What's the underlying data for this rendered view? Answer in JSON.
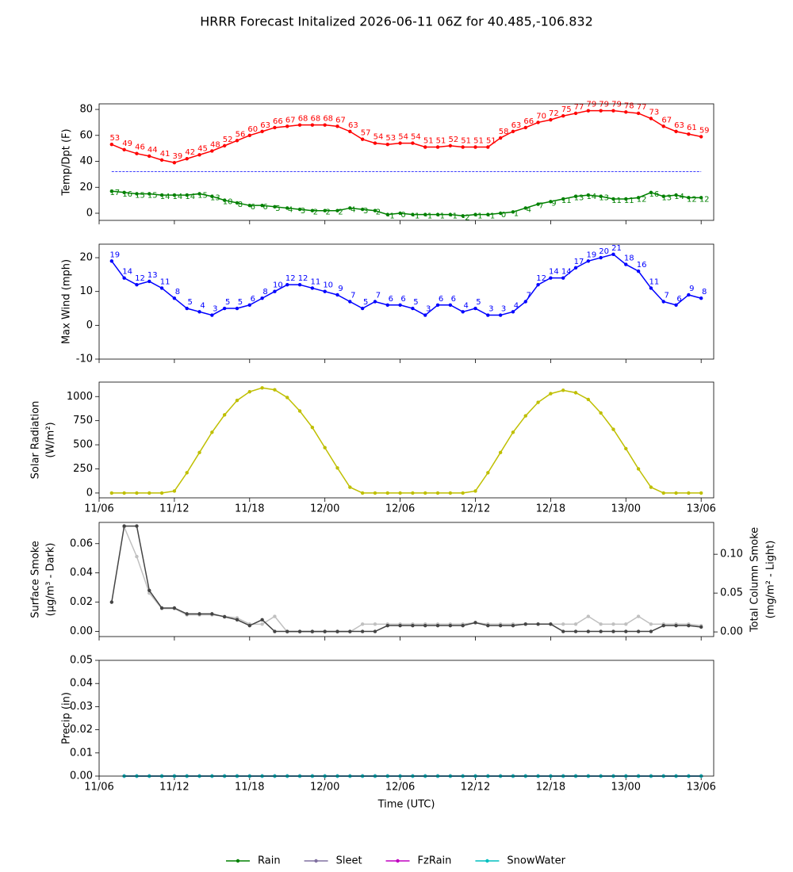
{
  "title": "HRRR Forecast Initalized 2026-06-11 06Z for 40.485,-106.832",
  "chart_data": [
    {
      "type": "line",
      "ylabel": [
        "Temp/Dpt (F)"
      ],
      "x": [
        1,
        2,
        3,
        4,
        5,
        6,
        7,
        8,
        9,
        10,
        11,
        12,
        13,
        14,
        15,
        16,
        17,
        18,
        19,
        20,
        21,
        22,
        23,
        24,
        25,
        26,
        27,
        28,
        29,
        30,
        31,
        32,
        33,
        34,
        35,
        36,
        37,
        38,
        39,
        40,
        41,
        42,
        43,
        44,
        45,
        46,
        47,
        48
      ],
      "xlim": [
        0,
        49
      ],
      "xticks": [
        0,
        6,
        12,
        18,
        24,
        30,
        36,
        42,
        48
      ],
      "ylim": [
        -5.5,
        84.3
      ],
      "yticks": [
        0,
        20,
        40,
        60,
        80
      ],
      "reference_line": {
        "value": 32,
        "color": "#0000ff"
      },
      "series": [
        {
          "color": "#ff0000",
          "show_values": true,
          "values": [
            53,
            49,
            46,
            44,
            41,
            39,
            42,
            45,
            48,
            52,
            56,
            60,
            63,
            66,
            67,
            68,
            68,
            68,
            67,
            63,
            57,
            54,
            53,
            54,
            54,
            51,
            51,
            52,
            51,
            51,
            51,
            58,
            63,
            66,
            70,
            72,
            75,
            77,
            79,
            79,
            79,
            78,
            77,
            73,
            67,
            63,
            61,
            59
          ]
        },
        {
          "color": "#008000",
          "show_values": true,
          "values": [
            17,
            16,
            15,
            15,
            14,
            14,
            14,
            15,
            13,
            10,
            8,
            6,
            6,
            5,
            4,
            3,
            2,
            2,
            2,
            4,
            3,
            2,
            -1,
            0,
            -1,
            -1,
            -1,
            -1,
            -2,
            -1,
            -1,
            0,
            1,
            4,
            7,
            9,
            11,
            13,
            14,
            13,
            11,
            11,
            12,
            16,
            13,
            14,
            12,
            12
          ]
        }
      ]
    },
    {
      "type": "line",
      "ylabel": [
        "Max Wind (mph)"
      ],
      "x": [
        1,
        2,
        3,
        4,
        5,
        6,
        7,
        8,
        9,
        10,
        11,
        12,
        13,
        14,
        15,
        16,
        17,
        18,
        19,
        20,
        21,
        22,
        23,
        24,
        25,
        26,
        27,
        28,
        29,
        30,
        31,
        32,
        33,
        34,
        35,
        36,
        37,
        38,
        39,
        40,
        41,
        42,
        43,
        44,
        45,
        46,
        47,
        48
      ],
      "xlim": [
        0,
        49
      ],
      "xticks": [
        0,
        6,
        12,
        18,
        24,
        30,
        36,
        42,
        48
      ],
      "ylim": [
        -10,
        24
      ],
      "yticks": [
        -10,
        0,
        10,
        20
      ],
      "series": [
        {
          "color": "#0000ff",
          "show_values": true,
          "values": [
            19,
            14,
            12,
            13,
            11,
            8,
            5,
            4,
            3,
            5,
            5,
            6,
            8,
            10,
            12,
            12,
            11,
            10,
            9,
            7,
            5,
            7,
            6,
            6,
            5,
            3,
            6,
            6,
            4,
            5,
            3,
            3,
            4,
            7,
            12,
            14,
            14,
            17,
            19,
            20,
            21,
            18,
            16,
            11,
            7,
            6,
            9,
            8
          ]
        }
      ]
    },
    {
      "type": "line",
      "ylabel": [
        "Solar Radiation",
        "(W/m²)"
      ],
      "x": [
        1,
        2,
        3,
        4,
        5,
        6,
        7,
        8,
        9,
        10,
        11,
        12,
        13,
        14,
        15,
        16,
        17,
        18,
        19,
        20,
        21,
        22,
        23,
        24,
        25,
        26,
        27,
        28,
        29,
        30,
        31,
        32,
        33,
        34,
        35,
        36,
        37,
        38,
        39,
        40,
        41,
        42,
        43,
        44,
        45,
        46,
        47,
        48
      ],
      "xlim": [
        0,
        49
      ],
      "xticks": [
        {
          "value": 0,
          "label": "11/06"
        },
        {
          "value": 6,
          "label": "11/12"
        },
        {
          "value": 12,
          "label": "11/18"
        },
        {
          "value": 18,
          "label": "12/00"
        },
        {
          "value": 24,
          "label": "12/06"
        },
        {
          "value": 30,
          "label": "12/12"
        },
        {
          "value": 36,
          "label": "12/18"
        },
        {
          "value": 42,
          "label": "13/00"
        },
        {
          "value": 48,
          "label": "13/06"
        }
      ],
      "ylim": [
        -50,
        1150
      ],
      "yticks": [
        0,
        250,
        500,
        750,
        1000
      ],
      "series": [
        {
          "color": "#bfbf00",
          "values": [
            0,
            0,
            0,
            0,
            0,
            20,
            210,
            420,
            630,
            810,
            960,
            1050,
            1090,
            1070,
            990,
            850,
            680,
            470,
            260,
            60,
            0,
            0,
            0,
            0,
            0,
            0,
            0,
            0,
            0,
            20,
            210,
            420,
            630,
            800,
            940,
            1030,
            1065,
            1040,
            970,
            830,
            660,
            460,
            250,
            60,
            0,
            0,
            0,
            0
          ]
        }
      ]
    },
    {
      "type": "line",
      "ylabel": [
        "Surface Smoke",
        "(µg/m³ - Dark)"
      ],
      "y2label": [
        "Total Column Smoke",
        "(mg/m² - Light)"
      ],
      "x": [
        1,
        2,
        3,
        4,
        5,
        6,
        7,
        8,
        9,
        10,
        11,
        12,
        13,
        14,
        15,
        16,
        17,
        18,
        19,
        20,
        21,
        22,
        23,
        24,
        25,
        26,
        27,
        28,
        29,
        30,
        31,
        32,
        33,
        34,
        35,
        36,
        37,
        38,
        39,
        40,
        41,
        42,
        43,
        44,
        45,
        46,
        47,
        48
      ],
      "xlim": [
        0,
        49
      ],
      "xticks": [
        0,
        6,
        12,
        18,
        24,
        30,
        36,
        42,
        48
      ],
      "ylim": [
        -0.0035,
        0.0745
      ],
      "yticks": [
        {
          "value": 0,
          "label": "0.00"
        },
        {
          "value": 0.02,
          "label": "0.02"
        },
        {
          "value": 0.04,
          "label": "0.04"
        },
        {
          "value": 0.06,
          "label": "0.06"
        }
      ],
      "y2lim": [
        -0.006,
        0.141
      ],
      "y2ticks": [
        {
          "value": 0,
          "label": "0.00"
        },
        {
          "value": 0.05,
          "label": "0.05"
        },
        {
          "value": 0.1,
          "label": "0.10"
        }
      ],
      "series": [
        {
          "color": "#c0c0c0",
          "axis": "y2",
          "values": [
            null,
            0.135,
            0.097,
            0.05,
            0.03,
            0.03,
            0.022,
            0.022,
            0.022,
            0.02,
            0.018,
            0.01,
            0.01,
            0.02,
            0,
            0,
            0,
            0,
            0,
            0,
            0.01,
            0.01,
            0.01,
            0.01,
            0.01,
            0.01,
            0.01,
            0.01,
            0.01,
            0.012,
            0.01,
            0.01,
            0.01,
            0.01,
            0.01,
            0.01,
            0.01,
            0.01,
            0.02,
            0.01,
            0.01,
            0.01,
            0.02,
            0.01,
            0.01,
            0.01,
            0.01,
            0.008
          ]
        },
        {
          "color": "#444444",
          "values": [
            0.02,
            0.072,
            0.072,
            0.028,
            0.016,
            0.016,
            0.012,
            0.012,
            0.012,
            0.01,
            0.008,
            0.004,
            0.008,
            0,
            0,
            0,
            0,
            0,
            0,
            0,
            0,
            0,
            0.004,
            0.004,
            0.004,
            0.004,
            0.004,
            0.004,
            0.004,
            0.006,
            0.004,
            0.004,
            0.004,
            0.005,
            0.005,
            0.005,
            0,
            0,
            0,
            0,
            0,
            0,
            0,
            0,
            0.004,
            0.004,
            0.004,
            0.003
          ]
        }
      ]
    },
    {
      "type": "line",
      "ylabel": [
        "Precip (in)"
      ],
      "xlabel": "Time (UTC)",
      "x": [
        1,
        2,
        3,
        4,
        5,
        6,
        7,
        8,
        9,
        10,
        11,
        12,
        13,
        14,
        15,
        16,
        17,
        18,
        19,
        20,
        21,
        22,
        23,
        24,
        25,
        26,
        27,
        28,
        29,
        30,
        31,
        32,
        33,
        34,
        35,
        36,
        37,
        38,
        39,
        40,
        41,
        42,
        43,
        44,
        45,
        46,
        47,
        48
      ],
      "xlim": [
        0,
        49
      ],
      "xticks": [
        {
          "value": 0,
          "label": "11/06"
        },
        {
          "value": 6,
          "label": "11/12"
        },
        {
          "value": 12,
          "label": "11/18"
        },
        {
          "value": 18,
          "label": "12/00"
        },
        {
          "value": 24,
          "label": "12/06"
        },
        {
          "value": 30,
          "label": "12/12"
        },
        {
          "value": 36,
          "label": "12/18"
        },
        {
          "value": 42,
          "label": "13/00"
        },
        {
          "value": 48,
          "label": "13/06"
        }
      ],
      "ylim": [
        0,
        0.05
      ],
      "yticks": [
        {
          "value": 0,
          "label": "0.00"
        },
        {
          "value": 0.01,
          "label": "0.01"
        },
        {
          "value": 0.02,
          "label": "0.02"
        },
        {
          "value": 0.03,
          "label": "0.03"
        },
        {
          "value": 0.04,
          "label": "0.04"
        },
        {
          "value": 0.05,
          "label": "0.05"
        }
      ],
      "legend": "bottom",
      "series": [
        {
          "name": "Rain",
          "color": "#008000",
          "values": [
            null,
            0,
            0,
            0,
            0,
            0,
            0,
            0,
            0,
            0,
            0,
            0,
            0,
            0,
            0,
            0,
            0,
            0,
            0,
            0,
            0,
            0,
            0,
            0,
            0,
            0,
            0,
            0,
            0,
            0,
            0,
            0,
            0,
            0,
            0,
            0,
            0,
            0,
            0,
            0,
            0,
            0,
            0,
            0,
            0,
            0,
            0,
            0
          ]
        },
        {
          "name": "Sleet",
          "color": "#8070a0",
          "values": [
            null,
            0,
            0,
            0,
            0,
            0,
            0,
            0,
            0,
            0,
            0,
            0,
            0,
            0,
            0,
            0,
            0,
            0,
            0,
            0,
            0,
            0,
            0,
            0,
            0,
            0,
            0,
            0,
            0,
            0,
            0,
            0,
            0,
            0,
            0,
            0,
            0,
            0,
            0,
            0,
            0,
            0,
            0,
            0,
            0,
            0,
            0,
            0
          ]
        },
        {
          "name": "FzRain",
          "color": "#c000c0",
          "values": [
            null,
            0,
            0,
            0,
            0,
            0,
            0,
            0,
            0,
            0,
            0,
            0,
            0,
            0,
            0,
            0,
            0,
            0,
            0,
            0,
            0,
            0,
            0,
            0,
            0,
            0,
            0,
            0,
            0,
            0,
            0,
            0,
            0,
            0,
            0,
            0,
            0,
            0,
            0,
            0,
            0,
            0,
            0,
            0,
            0,
            0,
            0,
            0
          ]
        },
        {
          "name": "SnowWater",
          "color": "#00bfbf",
          "values": [
            null,
            0,
            0,
            0,
            0,
            0,
            0,
            0,
            0,
            0,
            0,
            0,
            0,
            0,
            0,
            0,
            0,
            0,
            0,
            0,
            0,
            0,
            0,
            0,
            0,
            0,
            0,
            0,
            0,
            0,
            0,
            0,
            0,
            0,
            0,
            0,
            0,
            0,
            0,
            0,
            0,
            0,
            0,
            0,
            0,
            0,
            0,
            0
          ]
        }
      ]
    }
  ]
}
